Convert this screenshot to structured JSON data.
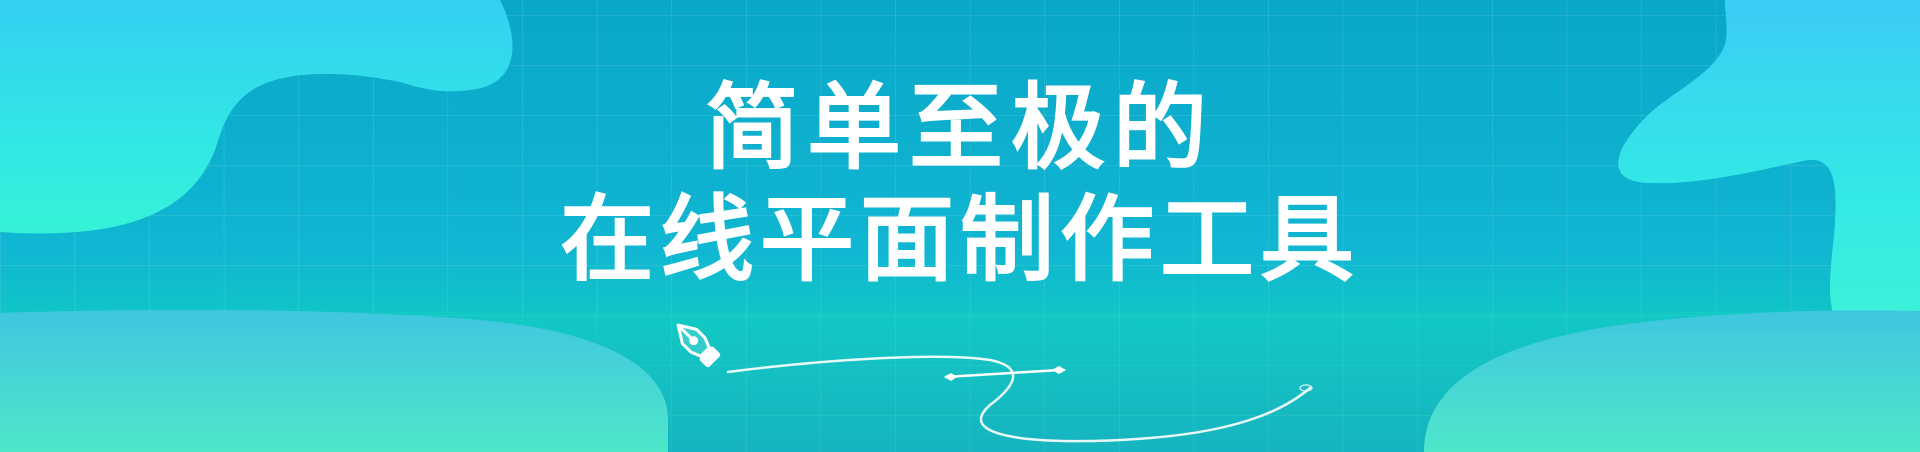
{
  "headline": {
    "line1": "简单至极的",
    "line2": "在线平面制作工具"
  },
  "colors": {
    "sky_top": "#0aa7c8",
    "sky_mid": "#10b6d2",
    "band": "#12c8c4",
    "blob_light": "#35f2dc",
    "blob_blue": "#3ad2f2",
    "text": "#ffffff"
  },
  "icons": [
    "pen-nib-icon",
    "curved-line-stroke"
  ]
}
